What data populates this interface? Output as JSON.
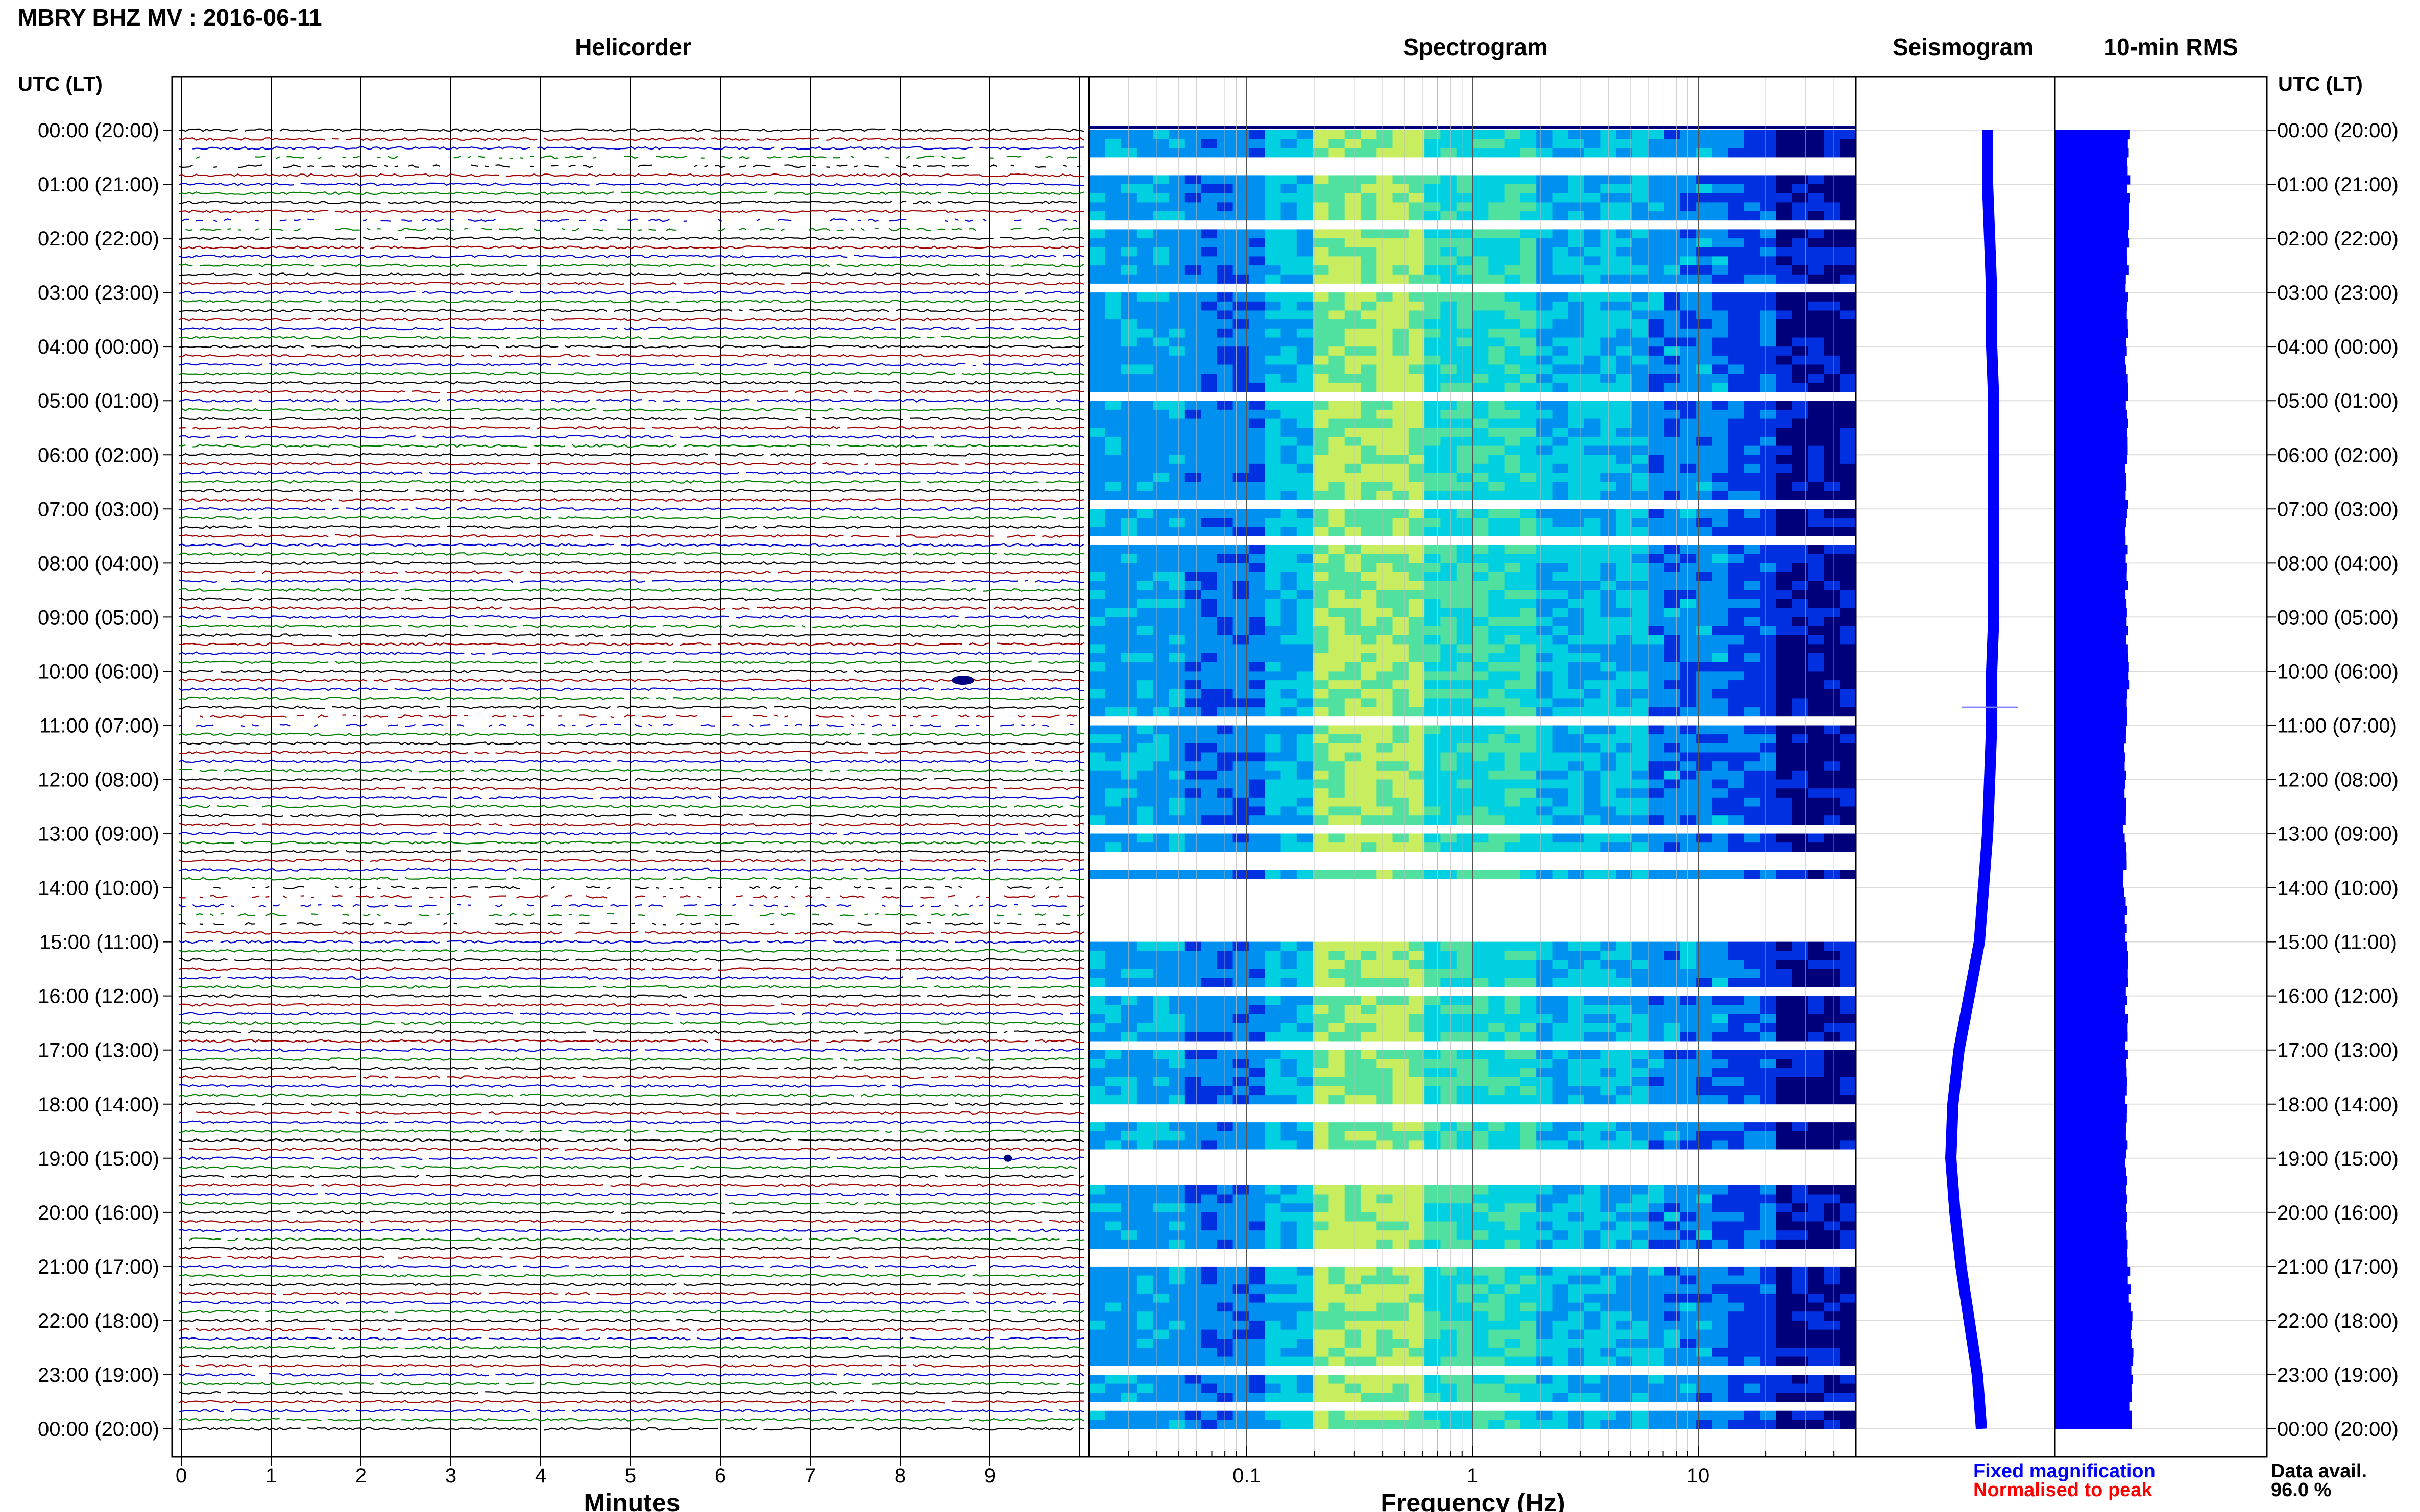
{
  "header": {
    "title": "MBRY BHZ MV : 2016-06-11",
    "left_axis_label": "UTC (LT)",
    "right_axis_label": "UTC (LT)"
  },
  "panels": {
    "helicorder": "Helicorder",
    "spectrogram": "Spectrogram",
    "seismogram": "Seismogram",
    "rms": "10-min RMS"
  },
  "time_ticks": [
    "00:00 (20:00)",
    "01:00 (21:00)",
    "02:00 (22:00)",
    "03:00 (23:00)",
    "04:00 (00:00)",
    "05:00 (01:00)",
    "06:00 (02:00)",
    "07:00 (03:00)",
    "08:00 (04:00)",
    "09:00 (05:00)",
    "10:00 (06:00)",
    "11:00 (07:00)",
    "12:00 (08:00)",
    "13:00 (09:00)",
    "14:00 (10:00)",
    "15:00 (11:00)",
    "16:00 (12:00)",
    "17:00 (13:00)",
    "18:00 (14:00)",
    "19:00 (15:00)",
    "20:00 (16:00)",
    "21:00 (17:00)",
    "22:00 (18:00)",
    "23:00 (19:00)",
    "00:00 (20:00)"
  ],
  "chart_data": [
    {
      "type": "line",
      "title": "Helicorder",
      "xlabel": "Minutes",
      "xlim": [
        0,
        10
      ],
      "x_ticks": [
        "0",
        "1",
        "2",
        "3",
        "4",
        "5",
        "6",
        "7",
        "8",
        "9"
      ],
      "rows": 144,
      "minutes_per_row": 10,
      "trace_colors": [
        "#000000",
        "#a00000",
        "#0000d0",
        "#008000"
      ],
      "events": [
        {
          "time_utc": "10:10",
          "minute": 8.7
        },
        {
          "time_utc": "19:00",
          "minute": 9.2
        }
      ]
    },
    {
      "type": "heatmap",
      "title": "Spectrogram",
      "xlabel": "Frequency (Hz)",
      "x_scale": "log",
      "xlim": [
        0.02,
        50
      ],
      "x_ticks": [
        {
          "value": 0.1,
          "label": "0.1"
        },
        {
          "value": 1,
          "label": "1"
        },
        {
          "value": 10,
          "label": "10"
        }
      ],
      "colormap": [
        "#00007a",
        "#0030e0",
        "#0090f0",
        "#00d0e0",
        "#50e0a0",
        "#c8ee60"
      ],
      "peak_band_hz": [
        0.2,
        0.6
      ],
      "data_gaps_utc": [
        "14:00-15:00"
      ]
    },
    {
      "type": "line",
      "title": "Seismogram",
      "series": [
        {
          "values": [
            0.12,
            0.12,
            0.13,
            0.14,
            0.14,
            0.15,
            0.15,
            0.15,
            0.15,
            0.15,
            0.14,
            0.14,
            0.13,
            0.12,
            0.1,
            0.08,
            0.03,
            -0.02,
            -0.05,
            -0.06,
            -0.04,
            -0.01,
            0.03,
            0.07,
            0.09
          ]
        }
      ],
      "color": "#0000ff",
      "event_time_utc": "10:40"
    },
    {
      "type": "bar",
      "title": "10-min RMS",
      "color": "#0000ff",
      "values_hourly": [
        0.62,
        0.62,
        0.62,
        0.6,
        0.6,
        0.6,
        0.6,
        0.6,
        0.6,
        0.6,
        0.62,
        0.58,
        0.58,
        0.58,
        0.58,
        0.6,
        0.6,
        0.6,
        0.6,
        0.6,
        0.6,
        0.62,
        0.66,
        0.66,
        0.64
      ],
      "spike_time_utc": "10:20"
    }
  ],
  "legend": {
    "fixed": "Fixed magnification",
    "normalised": "Normalised to peak",
    "fixed_color": "#0000ff",
    "normalised_color": "#ff0000"
  },
  "availability": {
    "label": "Data avail.",
    "value": "96.0 %"
  }
}
